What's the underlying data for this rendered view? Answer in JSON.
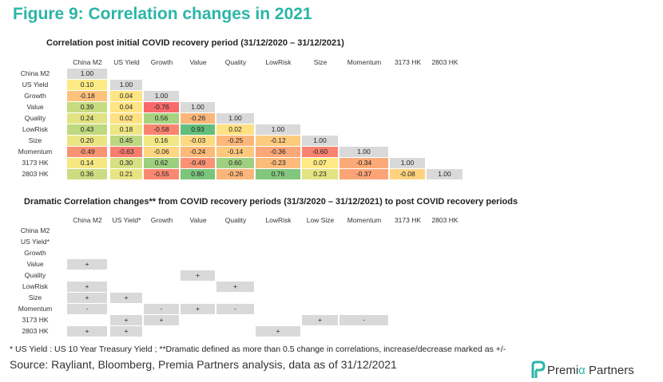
{
  "figure_title": "Figure 9: Correlation changes in 2021",
  "source": "Source: Rayliant, Bloomberg, Premia Partners analysis, data as of 31/12/2021",
  "footnote": "* US Yield : US 10 Year Treasury  Yield ; **Dramatic defined as more than 0.5 change in correlations, increase/decrease marked as +/-",
  "logo": {
    "name_part1": "Premi",
    "alpha": "α",
    "name_part2": " Partners"
  },
  "colors": {
    "accent": "#2bb5a8",
    "diagonal": "#d9d9d9",
    "mark_cell": "#d9d9d9",
    "low": "#f8696b",
    "mid": "#ffeb84",
    "high": "#63be7b"
  },
  "chart_data": [
    {
      "type": "heatmap",
      "title": "Correlation post initial COVID recovery period (31/12/2020 – 31/12/2021)",
      "columns": [
        "China M2",
        "US Yield",
        "Growth",
        "Value",
        "Quality",
        "LowRisk",
        "Size",
        "Momentum",
        "3173 HK",
        "2803 HK"
      ],
      "rows": [
        "China M2",
        "US Yield",
        "Growth",
        "Value",
        "Quality",
        "LowRisk",
        "Size",
        "Momentum",
        "3173 HK",
        "2803 HK"
      ],
      "values": [
        [
          "1.00"
        ],
        [
          "0.10",
          "1.00"
        ],
        [
          "-0.18",
          "0.04",
          "1.00"
        ],
        [
          "0.39",
          "0.04",
          "-0.76",
          "1.00"
        ],
        [
          "0.24",
          "0.02",
          "0.56",
          "-0.26",
          "1.00"
        ],
        [
          "0.43",
          "0.18",
          "-0.58",
          "0.93",
          "0.02",
          "1.00"
        ],
        [
          "0.20",
          "0.45",
          "0.16",
          "-0.03",
          "-0.25",
          "-0.12",
          "1.00"
        ],
        [
          "-0.49",
          "-0.63",
          "-0.06",
          "-0.24",
          "-0.14",
          "-0.36",
          "-0.60",
          "1.00"
        ],
        [
          "0.14",
          "0.30",
          "0.62",
          "-0.49",
          "0.60",
          "-0.23",
          "0.07",
          "-0.34",
          "1.00"
        ],
        [
          "0.36",
          "0.21",
          "-0.55",
          "0.80",
          "-0.26",
          "0.76",
          "0.23",
          "-0.37",
          "-0.08",
          "1.00"
        ]
      ]
    },
    {
      "type": "table",
      "title": "Dramatic Correlation changes** from COVID recovery periods (31/3/2020 – 31/12/2021) to post COVID recovery periods",
      "columns": [
        "China M2",
        "US Yield*",
        "Growth",
        "Value",
        "Quality",
        "LowRisk",
        "Low Size",
        "Momentum",
        "3173 HK",
        "2803 HK"
      ],
      "rows": [
        "China M2",
        "US Yield*",
        "Growth",
        "Value",
        "Quality",
        "LowRisk",
        "Size",
        "Momentum",
        "3173 HK",
        "2803 HK"
      ],
      "marks": [
        [],
        [
          "",
          ""
        ],
        [
          "",
          "",
          ""
        ],
        [
          "+",
          "",
          "",
          ""
        ],
        [
          "",
          "",
          "",
          "+",
          ""
        ],
        [
          "+",
          "",
          "",
          "",
          "+",
          ""
        ],
        [
          "+",
          "+",
          "",
          "",
          "",
          "",
          ""
        ],
        [
          "-",
          "",
          "-",
          "+",
          "-",
          "",
          "",
          ""
        ],
        [
          "",
          "+",
          "+",
          "",
          "",
          "",
          "+",
          "-",
          ""
        ],
        [
          "+",
          "+",
          "",
          "",
          "",
          "+",
          "",
          "",
          "",
          ""
        ]
      ]
    }
  ]
}
